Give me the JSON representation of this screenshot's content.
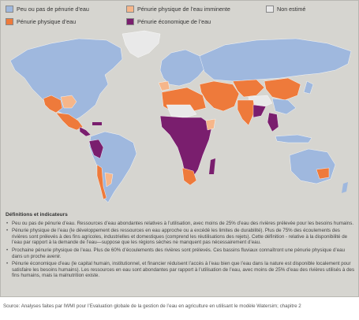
{
  "colors": {
    "ocean": "#d6d5d0",
    "little_or_no": "#9fb8de",
    "physical": "#ee7a3b",
    "approaching": "#f6b68a",
    "economic": "#7a1e6e",
    "not_estimated": "#e9e9e9"
  },
  "legend": [
    {
      "key": "little_or_no",
      "label": "Peu ou pas de pénurie d’eau",
      "icon": "swatch-blue"
    },
    {
      "key": "approaching",
      "label": "Pénurie physique de l’eau imminente",
      "icon": "swatch-light-orange"
    },
    {
      "key": "not_estimated",
      "label": "Non estimé",
      "icon": "swatch-gray"
    },
    {
      "key": "physical",
      "label": "Pénurie physique d’eau",
      "icon": "swatch-orange"
    },
    {
      "key": "economic",
      "label": "Pénurie économique de l’eau",
      "icon": "swatch-purple"
    }
  ],
  "definitions": {
    "title": "Définitions et indicateurs",
    "items": [
      "Peu ou pas de pénurie d’eau. Ressources d’eau abondantes relatives à l’utilisation, avec moins de 25% d’eau des rivières prélevée pour les besoins humains.",
      "Pénurie physique de l’eau (le développement des ressources en eau approche ou a excédé les limites de durabilité). Plus de 75% des écoulements des rivières sont prélevés à des fins agricoles, industrielles et domestiques (comprend les réutilisations des rejets). Cette définition - relative à la disponibilité de l’eau par rapport à la demande de l’eau—suppose que les régions sèches ne manquent pas nécessairement d’eau.",
      "Prochaine pénurie physique de l’eau. Plus de 60% d’écoulements des rivières sont prélevés. Ces bassins fluviaux connaîtront une pénurie physique d’eau dans un proche avenir.",
      "Pénurie économique d’eau (le capital humain, institutionnel, et financier réduisent l’accès à l’eau bien que l’eau dans la nature est disponible localement pour satisfaire les besoins humains). Les ressources en eau sont abondantes par rapport à l’utilisation de l’eau, avec moins de 25% d’eau des rivières utilisés à des fins humains, mais la malnutrition existe."
    ]
  },
  "source": "Source: Analyses faites par IWMI pour l’Evaluation globale de la gestion de l’eau en agriculture en utilisant le modèle Watersim; chapitre 2"
}
